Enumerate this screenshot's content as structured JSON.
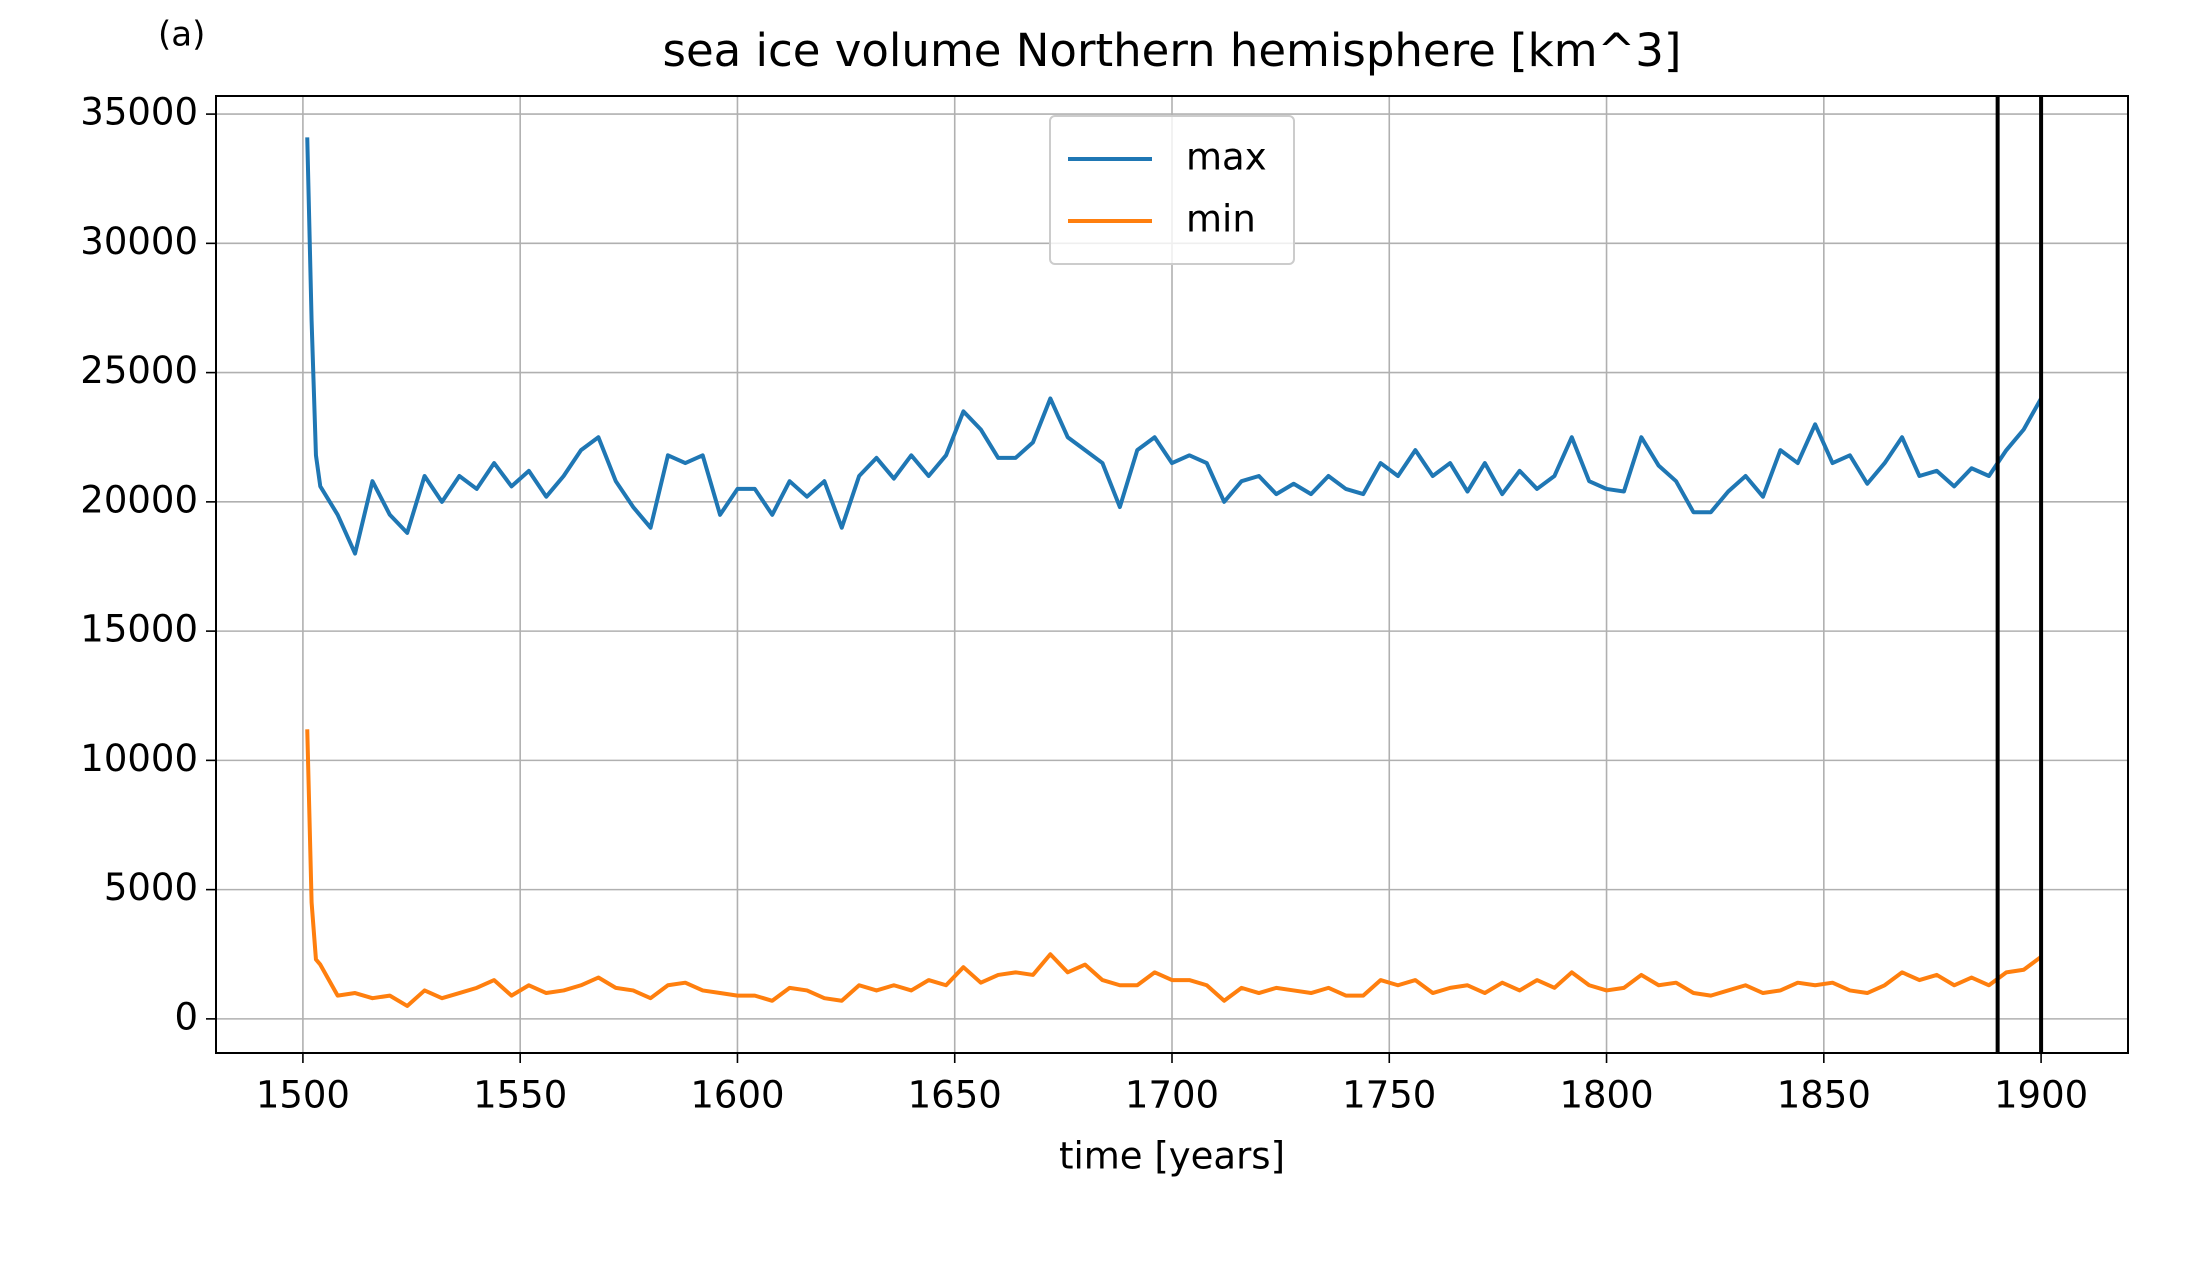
{
  "chart_data": {
    "type": "line",
    "label": "(a)",
    "title": "sea ice volume Northern hemisphere [km^3]",
    "xlabel": "time [years]",
    "x": [
      1501,
      1502,
      1503,
      1504,
      1508,
      1512,
      1516,
      1520,
      1524,
      1528,
      1532,
      1536,
      1540,
      1544,
      1548,
      1552,
      1556,
      1560,
      1564,
      1568,
      1572,
      1576,
      1580,
      1584,
      1588,
      1592,
      1596,
      1600,
      1604,
      1608,
      1612,
      1616,
      1620,
      1624,
      1628,
      1632,
      1636,
      1640,
      1644,
      1648,
      1652,
      1656,
      1660,
      1664,
      1668,
      1672,
      1676,
      1680,
      1684,
      1688,
      1692,
      1696,
      1700,
      1704,
      1708,
      1712,
      1716,
      1720,
      1724,
      1728,
      1732,
      1736,
      1740,
      1744,
      1748,
      1752,
      1756,
      1760,
      1764,
      1768,
      1772,
      1776,
      1780,
      1784,
      1788,
      1792,
      1796,
      1800,
      1804,
      1808,
      1812,
      1816,
      1820,
      1824,
      1828,
      1832,
      1836,
      1840,
      1844,
      1848,
      1852,
      1856,
      1860,
      1864,
      1868,
      1872,
      1876,
      1880,
      1884,
      1888,
      1892,
      1896,
      1900
    ],
    "series": [
      {
        "name": "max",
        "color": "#1f77b4",
        "values": [
          34100,
          27000,
          21800,
          20600,
          19500,
          18000,
          20800,
          19500,
          18800,
          21000,
          20000,
          21000,
          20500,
          21500,
          20600,
          21200,
          20200,
          21000,
          22000,
          22500,
          20800,
          19800,
          19000,
          21800,
          21500,
          21800,
          19500,
          20500,
          20500,
          19500,
          20800,
          20200,
          20800,
          19000,
          21000,
          21700,
          20900,
          21800,
          21000,
          21800,
          23500,
          22800,
          21700,
          21700,
          22300,
          24000,
          22500,
          22000,
          21500,
          19800,
          22000,
          22500,
          21500,
          21800,
          21500,
          20000,
          20800,
          21000,
          20300,
          20700,
          20300,
          21000,
          20500,
          20300,
          21500,
          21000,
          22000,
          21000,
          21500,
          20400,
          21500,
          20300,
          21200,
          20500,
          21000,
          22500,
          20800,
          20500,
          20400,
          22500,
          21400,
          20800,
          19600,
          19600,
          20400,
          21000,
          20200,
          22000,
          21500,
          23000,
          21500,
          21800,
          20700,
          21500,
          22500,
          21000,
          21200,
          20600,
          21300,
          21000,
          22000,
          22800,
          24000
        ]
      },
      {
        "name": "min",
        "color": "#ff7f0e",
        "values": [
          11200,
          4500,
          2300,
          2100,
          900,
          1000,
          800,
          900,
          500,
          1100,
          800,
          1000,
          1200,
          1500,
          900,
          1300,
          1000,
          1100,
          1300,
          1600,
          1200,
          1100,
          800,
          1300,
          1400,
          1100,
          1000,
          900,
          900,
          700,
          1200,
          1100,
          800,
          700,
          1300,
          1100,
          1300,
          1100,
          1500,
          1300,
          2000,
          1400,
          1700,
          1800,
          1700,
          2500,
          1800,
          2100,
          1500,
          1300,
          1300,
          1800,
          1500,
          1500,
          1300,
          700,
          1200,
          1000,
          1200,
          1100,
          1000,
          1200,
          900,
          900,
          1500,
          1300,
          1500,
          1000,
          1200,
          1300,
          1000,
          1400,
          1100,
          1500,
          1200,
          1800,
          1300,
          1100,
          1200,
          1700,
          1300,
          1400,
          1000,
          900,
          1100,
          1300,
          1000,
          1100,
          1400,
          1300,
          1400,
          1100,
          1000,
          1300,
          1800,
          1500,
          1700,
          1300,
          1600,
          1300,
          1800,
          1900,
          2400
        ]
      }
    ],
    "vlines": [
      1890,
      1900
    ],
    "vline_color": "#000000",
    "xlim": [
      1480,
      1920
    ],
    "xticks": [
      1500,
      1550,
      1600,
      1650,
      1700,
      1750,
      1800,
      1850,
      1900
    ],
    "ylim": [
      -1320,
      35700
    ],
    "yticks": [
      0,
      5000,
      10000,
      15000,
      20000,
      25000,
      30000,
      35000
    ],
    "grid": true,
    "legend": "upper center"
  }
}
